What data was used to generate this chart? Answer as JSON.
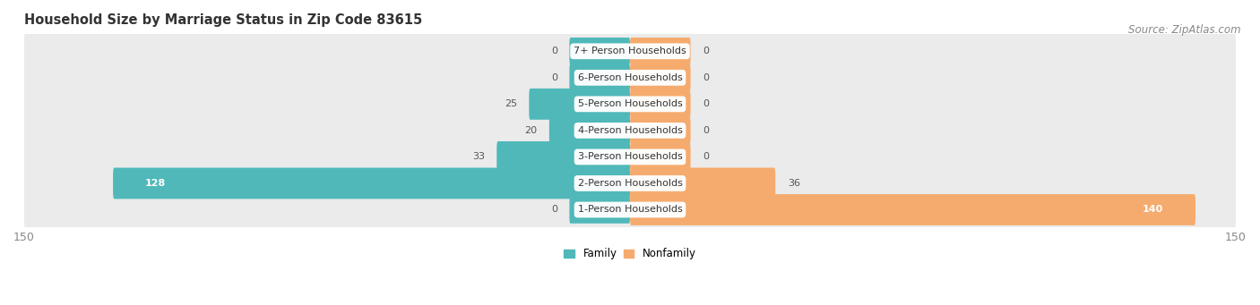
{
  "title": "Household Size by Marriage Status in Zip Code 83615",
  "source": "Source: ZipAtlas.com",
  "categories": [
    "7+ Person Households",
    "6-Person Households",
    "5-Person Households",
    "4-Person Households",
    "3-Person Households",
    "2-Person Households",
    "1-Person Households"
  ],
  "family_values": [
    0,
    0,
    25,
    20,
    33,
    128,
    0
  ],
  "nonfamily_values": [
    0,
    0,
    0,
    0,
    0,
    36,
    140
  ],
  "family_color": "#50B8B8",
  "nonfamily_color": "#F5AB6E",
  "bar_bg_color": "#EBEBEB",
  "bar_bg_shadow": "#D8D8D8",
  "axis_limit": 150,
  "title_fontsize": 10.5,
  "source_fontsize": 8.5,
  "label_fontsize": 8,
  "tick_fontsize": 9,
  "zero_bar_width": 15
}
